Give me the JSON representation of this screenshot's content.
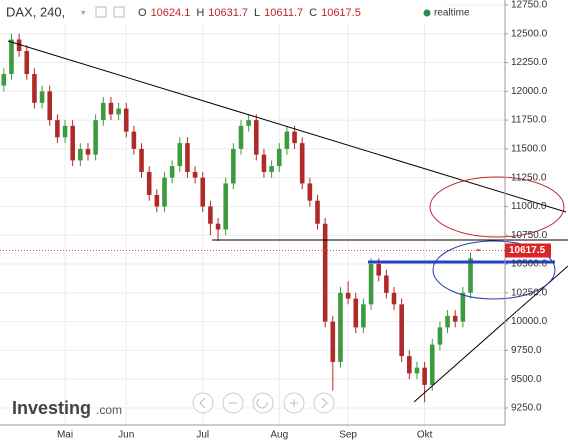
{
  "chart_data": {
    "type": "candlestick",
    "title": "DAX, 240,",
    "ohlc_labels": [
      "O",
      "H",
      "L",
      "C"
    ],
    "status": "realtime",
    "logo": "Investing",
    "logo_suffix": ".com",
    "categories": [
      null,
      null,
      null,
      null,
      null,
      null,
      null,
      null,
      "Mai",
      null,
      null,
      null,
      null,
      null,
      null,
      null,
      "Jun",
      null,
      null,
      null,
      null,
      null,
      null,
      null,
      null,
      null,
      "Jul",
      null,
      null,
      null,
      null,
      null,
      null,
      null,
      null,
      null,
      "Aug",
      null,
      null,
      null,
      null,
      null,
      null,
      null,
      null,
      "Sep",
      null,
      null,
      null,
      null,
      null,
      null,
      null,
      null,
      null,
      "Okt",
      null,
      null,
      null,
      null,
      null,
      null,
      null
    ],
    "open": [
      12050,
      12150,
      12450,
      12350,
      12150,
      11900,
      12000,
      11750,
      11600,
      11700,
      11400,
      11500,
      11450,
      11750,
      11900,
      11800,
      11850,
      11650,
      11500,
      11300,
      11100,
      11000,
      11250,
      11350,
      11550,
      11300,
      11250,
      11000,
      10850,
      10800,
      11200,
      11500,
      11700,
      11750,
      11450,
      11300,
      11350,
      11500,
      11650,
      11550,
      11200,
      11050,
      10850,
      10000,
      9650,
      10250,
      10200,
      9950,
      10150,
      10500,
      10400,
      10250,
      10150,
      9700,
      9550,
      9600,
      9450,
      9800,
      9950,
      10050,
      10000,
      10250,
      10624.1
    ],
    "high": [
      12200,
      12500,
      12500,
      12400,
      12200,
      12050,
      12050,
      11800,
      11750,
      11750,
      11550,
      11550,
      11800,
      11950,
      11950,
      11900,
      11900,
      11700,
      11550,
      11350,
      11150,
      11300,
      11400,
      11600,
      11600,
      11350,
      11300,
      11050,
      10900,
      11250,
      11550,
      11750,
      11800,
      11800,
      11500,
      11400,
      11550,
      11700,
      11700,
      11600,
      11250,
      11100,
      10900,
      10050,
      10300,
      10350,
      10250,
      10200,
      10550,
      10550,
      10450,
      10300,
      10200,
      9750,
      9650,
      9650,
      9850,
      10000,
      10100,
      10100,
      10300,
      10600,
      10631.7
    ],
    "low": [
      12000,
      12100,
      12300,
      12100,
      11850,
      11850,
      11700,
      11550,
      11550,
      11350,
      11350,
      11400,
      11400,
      11700,
      11750,
      11750,
      11600,
      11450,
      11250,
      11050,
      10950,
      10950,
      11200,
      11300,
      11250,
      11200,
      10950,
      10750,
      10700,
      10750,
      11150,
      11450,
      11650,
      11400,
      11250,
      11250,
      11300,
      11450,
      11500,
      11150,
      11000,
      10800,
      9950,
      9400,
      9600,
      10150,
      9900,
      9900,
      10100,
      10350,
      10200,
      10100,
      9650,
      9500,
      9500,
      9300,
      9400,
      9750,
      9900,
      9950,
      9950,
      10200,
      10611.7
    ],
    "close": [
      12150,
      12450,
      12350,
      12150,
      11900,
      12000,
      11750,
      11600,
      11700,
      11400,
      11500,
      11450,
      11750,
      11900,
      11800,
      11850,
      11650,
      11500,
      11300,
      11100,
      11000,
      11250,
      11350,
      11550,
      11300,
      11250,
      11000,
      10850,
      10800,
      11200,
      11500,
      11700,
      11750,
      11450,
      11300,
      11350,
      11500,
      11650,
      11550,
      11200,
      11050,
      10850,
      10000,
      9650,
      10250,
      10200,
      9950,
      10150,
      10500,
      10400,
      10250,
      10150,
      9700,
      9550,
      9600,
      9450,
      9800,
      9950,
      10050,
      10000,
      10250,
      10550,
      10617.5
    ],
    "up_color": "#3c9b3c",
    "down_color": "#b02a2a",
    "ylim": [
      9102,
      12793
    ],
    "yticks": [
      {
        "value": 9250,
        "label": "9250.0"
      },
      {
        "value": 9500,
        "label": "9500.0"
      },
      {
        "value": 9750,
        "label": "9750.0"
      },
      {
        "value": 10000,
        "label": "10000.0"
      },
      {
        "value": 10250,
        "label": "10250.0"
      },
      {
        "value": 10500,
        "label": "10500.0"
      },
      {
        "value": 10750,
        "label": "10750.0"
      },
      {
        "value": 11000,
        "label": "11000.0"
      },
      {
        "value": 11250,
        "label": "11250.0"
      },
      {
        "value": 11500,
        "label": "11500.0"
      },
      {
        "value": 11750,
        "label": "11750.0"
      },
      {
        "value": 12000,
        "label": "12000.0"
      },
      {
        "value": 12250,
        "label": "12250.0"
      },
      {
        "value": 12500,
        "label": "12500.0"
      },
      {
        "value": 12750,
        "label": "12750.0"
      }
    ],
    "grid": true
  }
}
